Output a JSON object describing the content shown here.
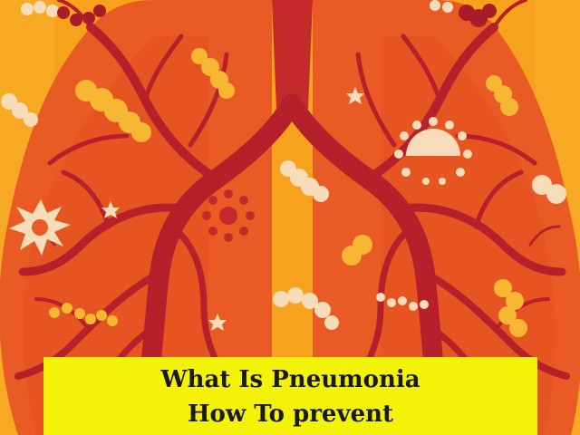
{
  "image": {
    "caption_lines": [
      "What Is Pneumonia",
      "How To prevent"
    ]
  },
  "colors": {
    "background": "#f6a21c",
    "lung": "#ea5a24",
    "lung_dark": "#e04a1e",
    "vessel": "#b5202a",
    "germ_light": "#f6dcb8",
    "germ_yellow": "#f7b733",
    "germ_dark": "#a81d27",
    "banner": "#f5f20a",
    "banner_text": "#1a1a1a"
  },
  "illustration": {
    "subject": "lungs-with-bronchial-tree",
    "icons": [
      "germ-chain-icon",
      "virus-icon",
      "bacteria-icon",
      "spiky-cell-icon",
      "star-spore-icon"
    ]
  }
}
